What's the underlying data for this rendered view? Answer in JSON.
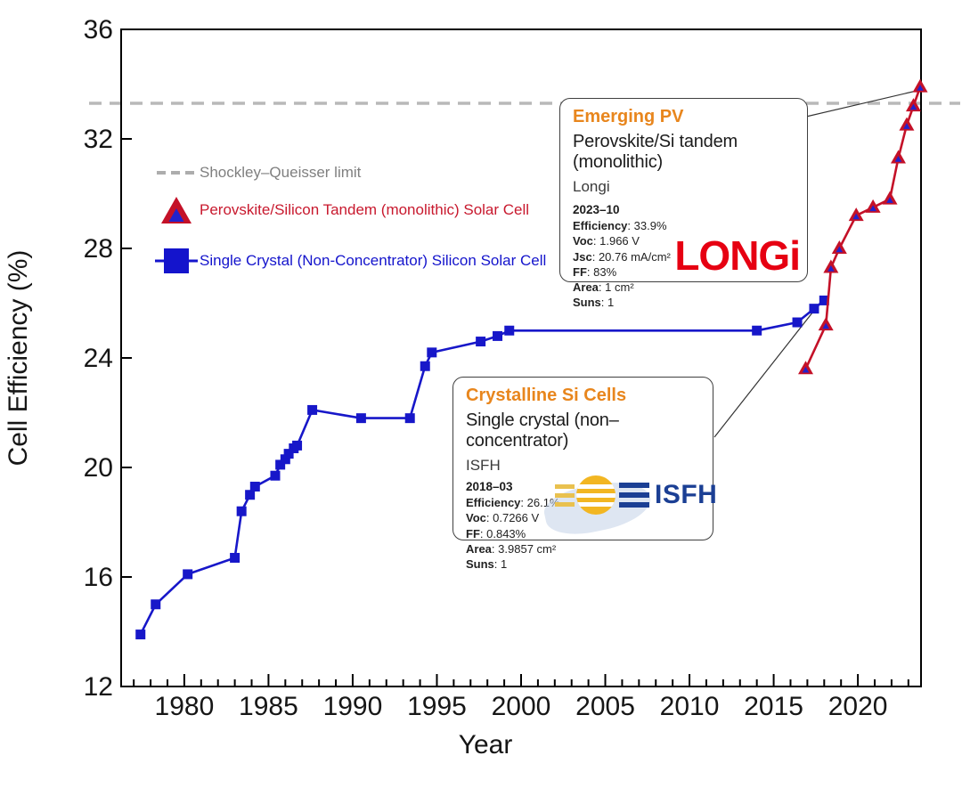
{
  "chart_data": {
    "type": "line",
    "title": "",
    "xlabel": "Year",
    "ylabel": "Cell Efficiency (%)",
    "xlim": [
      1976.25,
      2023.75
    ],
    "ylim": [
      12,
      36
    ],
    "y_ticks": [
      12,
      16,
      20,
      24,
      28,
      32,
      36
    ],
    "x_major_ticks": [
      1980,
      1985,
      1990,
      1995,
      2000,
      2005,
      2010,
      2015,
      2020
    ],
    "x_minor_tick_interval": 1,
    "grid": false,
    "shockley_queisser_limit_percent": 33.3,
    "series": [
      {
        "name": "Single Crystal (Non-Concentrator) Silicon Solar Cell",
        "color": "#1717c9",
        "marker": "square",
        "points": [
          [
            1977.4,
            13.9
          ],
          [
            1978.3,
            15.0
          ],
          [
            1980.2,
            16.1
          ],
          [
            1983.0,
            16.7
          ],
          [
            1983.4,
            18.4
          ],
          [
            1983.9,
            19.0
          ],
          [
            1984.2,
            19.3
          ],
          [
            1985.4,
            19.7
          ],
          [
            1985.7,
            20.1
          ],
          [
            1986.0,
            20.3
          ],
          [
            1986.2,
            20.5
          ],
          [
            1986.5,
            20.7
          ],
          [
            1986.7,
            20.8
          ],
          [
            1987.6,
            22.1
          ],
          [
            1990.5,
            21.8
          ],
          [
            1993.4,
            21.8
          ],
          [
            1994.3,
            23.7
          ],
          [
            1994.7,
            24.2
          ],
          [
            1997.6,
            24.6
          ],
          [
            1998.6,
            24.8
          ],
          [
            1999.3,
            25.0
          ],
          [
            2014.0,
            25.0
          ],
          [
            2016.4,
            25.3
          ],
          [
            2017.4,
            25.8
          ],
          [
            2018.0,
            26.1
          ]
        ]
      },
      {
        "name": "Perovskite/Silicon Tandem (monolithic) Solar Cell",
        "color": "#c41128",
        "marker": "triangle",
        "inner_marker_color": "#2222cc",
        "points": [
          [
            2016.9,
            23.6
          ],
          [
            2018.1,
            25.2
          ],
          [
            2018.4,
            27.3
          ],
          [
            2018.9,
            28.0
          ],
          [
            2019.9,
            29.2
          ],
          [
            2020.9,
            29.5
          ],
          [
            2021.9,
            29.8
          ],
          [
            2022.4,
            31.3
          ],
          [
            2022.9,
            32.5
          ],
          [
            2023.3,
            33.2
          ],
          [
            2023.7,
            33.9
          ]
        ]
      }
    ]
  },
  "legend": {
    "limit_label": "Shockley–Queisser limit",
    "tandem_label": "Perovskite/Silicon Tandem (monolithic) Solar Cell",
    "silicon_label": "Single Crystal (Non-Concentrator) Silicon Solar Cell",
    "limit_color": "#adadad",
    "tandem_color": "#c8192e",
    "silicon_color": "#1414cc"
  },
  "callouts": {
    "emerging": {
      "category": "Emerging PV",
      "technology": "Perovskite/Si tandem (monolithic)",
      "organization": "Longi",
      "date": "2023–10",
      "metrics": [
        {
          "label": "Efficiency",
          "value": "33.9%"
        },
        {
          "label": "Voc",
          "value": "1.966 V"
        },
        {
          "label": "Jsc",
          "value": "20.76 mA/cm²"
        },
        {
          "label": "FF",
          "value": "83%"
        },
        {
          "label": "Area",
          "value": "1 cm²"
        },
        {
          "label": "Suns",
          "value": "1"
        }
      ],
      "logo_text": "LONGi"
    },
    "crystalline": {
      "category": "Crystalline Si Cells",
      "technology": "Single crystal (non–concentrator)",
      "organization": "ISFH",
      "date": "2018–03",
      "metrics": [
        {
          "label": "Efficiency",
          "value": "26.1%"
        },
        {
          "label": "Voc",
          "value": "0.7266 V"
        },
        {
          "label": "FF",
          "value": "0.843%"
        },
        {
          "label": "Area",
          "value": "3.9857 cm²"
        },
        {
          "label": "Suns",
          "value": "1"
        }
      ],
      "logo_text": "ISFH"
    }
  }
}
